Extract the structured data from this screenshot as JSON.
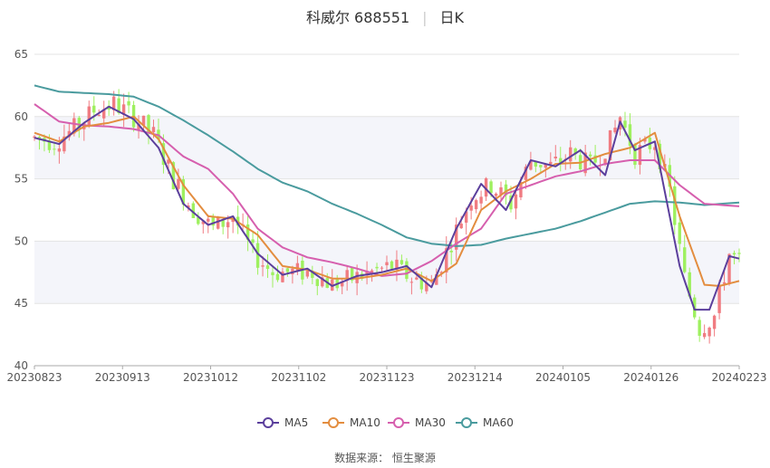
{
  "header": {
    "stock": "科威尔 688551",
    "period": "日K"
  },
  "source": {
    "label": "数据来源：",
    "name": "恒生聚源"
  },
  "chart_data": {
    "type": "candlestick",
    "ylim": [
      40,
      65
    ],
    "yticks": [
      40,
      45,
      50,
      55,
      60,
      65
    ],
    "x_tick_labels": [
      "20230823",
      "20230913",
      "20231012",
      "20231102",
      "20231123",
      "20231214",
      "20240105",
      "20240126",
      "20240223"
    ],
    "colors": {
      "up": "#f07c82",
      "down": "#9ef05f",
      "MA5": "#5b3f9c",
      "MA10": "#e38d3f",
      "MA30": "#d65fae",
      "MA60": "#4a9b9e"
    },
    "legend": [
      {
        "name": "MA5",
        "color": "#5b3f9c"
      },
      {
        "name": "MA10",
        "color": "#e38d3f"
      },
      {
        "name": "MA30",
        "color": "#d65fae"
      },
      {
        "name": "MA60",
        "color": "#4a9b9e"
      }
    ],
    "ma_series": {
      "MA5": [
        [
          0,
          58.3
        ],
        [
          5,
          57.8
        ],
        [
          10,
          59.5
        ],
        [
          15,
          60.8
        ],
        [
          20,
          59.8
        ],
        [
          25,
          57.5
        ],
        [
          30,
          53
        ],
        [
          35,
          51.3
        ],
        [
          40,
          52
        ],
        [
          45,
          49
        ],
        [
          50,
          47.3
        ],
        [
          55,
          47.8
        ],
        [
          60,
          46.4
        ],
        [
          65,
          47.2
        ],
        [
          70,
          47.5
        ],
        [
          75,
          48
        ],
        [
          80,
          46.3
        ],
        [
          85,
          51
        ],
        [
          90,
          54.6
        ],
        [
          95,
          52.5
        ],
        [
          100,
          56.5
        ],
        [
          105,
          56
        ],
        [
          110,
          57.3
        ],
        [
          115,
          55.3
        ],
        [
          118,
          59.6
        ],
        [
          121,
          57.3
        ],
        [
          125,
          58
        ],
        [
          130,
          48
        ],
        [
          133,
          44.5
        ],
        [
          136,
          44.5
        ],
        [
          140,
          48.8
        ],
        [
          142,
          48.6
        ]
      ],
      "MA10": [
        [
          0,
          58.7
        ],
        [
          5,
          58
        ],
        [
          10,
          59.2
        ],
        [
          15,
          59.5
        ],
        [
          20,
          60
        ],
        [
          25,
          58.2
        ],
        [
          30,
          54.5
        ],
        [
          35,
          52
        ],
        [
          40,
          51.8
        ],
        [
          45,
          50.5
        ],
        [
          50,
          48
        ],
        [
          55,
          47.7
        ],
        [
          60,
          47
        ],
        [
          65,
          47
        ],
        [
          70,
          47.3
        ],
        [
          75,
          47.8
        ],
        [
          80,
          46.8
        ],
        [
          85,
          48.2
        ],
        [
          90,
          52.5
        ],
        [
          95,
          54
        ],
        [
          100,
          55
        ],
        [
          105,
          56.2
        ],
        [
          110,
          56.3
        ],
        [
          115,
          57
        ],
        [
          120,
          57.5
        ],
        [
          125,
          58.7
        ],
        [
          130,
          52
        ],
        [
          135,
          46.5
        ],
        [
          138,
          46.4
        ],
        [
          142,
          46.8
        ]
      ],
      "MA30": [
        [
          0,
          61
        ],
        [
          5,
          59.6
        ],
        [
          10,
          59.3
        ],
        [
          15,
          59.2
        ],
        [
          20,
          59
        ],
        [
          25,
          58.5
        ],
        [
          30,
          56.8
        ],
        [
          35,
          55.8
        ],
        [
          40,
          53.8
        ],
        [
          45,
          51
        ],
        [
          50,
          49.5
        ],
        [
          55,
          48.7
        ],
        [
          60,
          48.3
        ],
        [
          65,
          47.8
        ],
        [
          70,
          47.2
        ],
        [
          75,
          47.4
        ],
        [
          80,
          48.4
        ],
        [
          85,
          49.8
        ],
        [
          90,
          51
        ],
        [
          95,
          53.8
        ],
        [
          100,
          54.5
        ],
        [
          105,
          55.2
        ],
        [
          110,
          55.6
        ],
        [
          115,
          56.2
        ],
        [
          120,
          56.5
        ],
        [
          125,
          56.5
        ],
        [
          130,
          54.5
        ],
        [
          135,
          53
        ],
        [
          142,
          52.8
        ]
      ],
      "MA60": [
        [
          0,
          62.5
        ],
        [
          5,
          62
        ],
        [
          10,
          61.9
        ],
        [
          15,
          61.8
        ],
        [
          20,
          61.6
        ],
        [
          25,
          60.8
        ],
        [
          30,
          59.7
        ],
        [
          35,
          58.5
        ],
        [
          40,
          57.2
        ],
        [
          45,
          55.8
        ],
        [
          50,
          54.7
        ],
        [
          55,
          54
        ],
        [
          60,
          53
        ],
        [
          65,
          52.2
        ],
        [
          70,
          51.3
        ],
        [
          75,
          50.3
        ],
        [
          80,
          49.8
        ],
        [
          85,
          49.6
        ],
        [
          90,
          49.7
        ],
        [
          95,
          50.2
        ],
        [
          100,
          50.6
        ],
        [
          105,
          51
        ],
        [
          110,
          51.6
        ],
        [
          115,
          52.3
        ],
        [
          120,
          53
        ],
        [
          125,
          53.2
        ],
        [
          130,
          53.1
        ],
        [
          135,
          52.9
        ],
        [
          142,
          53.1
        ]
      ]
    },
    "candle_anchors": [
      [
        0,
        58.3
      ],
      [
        4,
        58
      ],
      [
        8,
        59
      ],
      [
        12,
        60.5
      ],
      [
        16,
        61
      ],
      [
        20,
        60
      ],
      [
        24,
        58.5
      ],
      [
        28,
        55
      ],
      [
        32,
        52.5
      ],
      [
        36,
        51
      ],
      [
        40,
        52
      ],
      [
        44,
        49
      ],
      [
        48,
        47.5
      ],
      [
        52,
        47.5
      ],
      [
        56,
        47.5
      ],
      [
        60,
        46.5
      ],
      [
        64,
        47
      ],
      [
        68,
        47.5
      ],
      [
        72,
        48
      ],
      [
        76,
        47
      ],
      [
        80,
        46.5
      ],
      [
        84,
        50
      ],
      [
        88,
        53.5
      ],
      [
        92,
        54.5
      ],
      [
        96,
        53
      ],
      [
        100,
        56.5
      ],
      [
        104,
        56
      ],
      [
        108,
        57
      ],
      [
        112,
        56
      ],
      [
        116,
        58
      ],
      [
        118,
        60
      ],
      [
        121,
        57
      ],
      [
        125,
        58
      ],
      [
        128,
        54
      ],
      [
        131,
        47
      ],
      [
        134,
        43
      ],
      [
        137,
        44
      ],
      [
        140,
        49
      ],
      [
        142,
        48.3
      ]
    ]
  }
}
